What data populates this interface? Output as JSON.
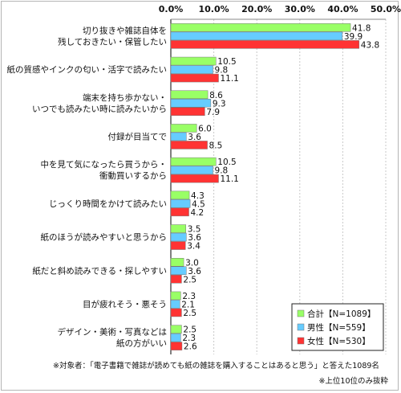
{
  "chart_data": {
    "type": "bar",
    "orientation": "horizontal",
    "x_ticks": [
      "0.0%",
      "10.0%",
      "20.0%",
      "30.0%",
      "40.0%",
      "50.0%"
    ],
    "xlim": [
      0,
      50
    ],
    "grid": true,
    "legend_position": "bottom-right",
    "categories": [
      [
        "切り抜きや雑誌自体を",
        "残しておきたい・保管したい"
      ],
      [
        "紙の質感やインクの匂い・活字で読みたい"
      ],
      [
        "端末を持ち歩かない・",
        "いつでも読みたい時に読みたいから"
      ],
      [
        "付録が目当てで"
      ],
      [
        "中を見て気になったら買うから・",
        "衝動買いするから"
      ],
      [
        "じっくり時間をかけて読みたい"
      ],
      [
        "紙のほうが読みやすいと思うから"
      ],
      [
        "紙だと斜め読みできる・探しやすい"
      ],
      [
        "目が疲れそう・悪そう"
      ],
      [
        "デザイン・美術・写真などは",
        "紙の方がいい"
      ]
    ],
    "series": [
      {
        "name": "合計【N=1089】",
        "color": "#99ff66",
        "values": [
          41.8,
          10.5,
          8.6,
          6.0,
          10.5,
          4.3,
          3.5,
          3.0,
          2.3,
          2.5
        ]
      },
      {
        "name": "男性【N=559】",
        "color": "#66ccff",
        "values": [
          39.9,
          9.8,
          9.3,
          3.6,
          9.8,
          4.5,
          3.6,
          3.6,
          2.1,
          2.3
        ]
      },
      {
        "name": "女性【N=530】",
        "color": "#ff3333",
        "values": [
          43.8,
          11.1,
          7.9,
          8.5,
          11.1,
          4.2,
          3.4,
          2.5,
          2.5,
          2.6
        ]
      }
    ]
  },
  "footnotes": {
    "target": "※対象者：「電子書籍で雑誌が読めても紙の雑誌を購入することはあると思う」と答えた1089名",
    "top10": "※上位10位のみ抜粋"
  }
}
